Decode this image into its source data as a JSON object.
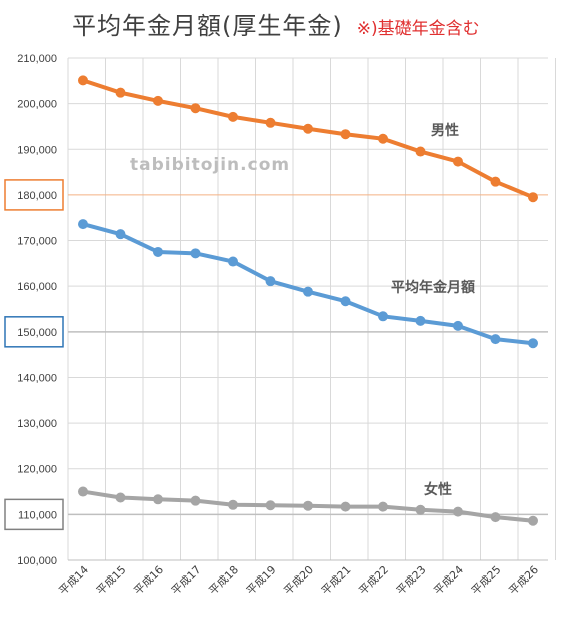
{
  "title": "平均年金月額(厚生年金)",
  "note": "※)基礎年金含む",
  "watermark": "tabibitojin.com",
  "colors": {
    "male": "#ed7d31",
    "avg": "#5b9bd5",
    "female": "#a5a5a5",
    "male_box": "#ed7d31",
    "avg_box": "#2e75b6",
    "female_box": "#808080",
    "grid": "#d9d9d9"
  },
  "chart_data": {
    "type": "line",
    "title": "平均年金月額(厚生年金)",
    "categories": [
      "平成14",
      "平成15",
      "平成16",
      "平成17",
      "平成18",
      "平成19",
      "平成20",
      "平成21",
      "平成22",
      "平成23",
      "平成24",
      "平成25",
      "平成26"
    ],
    "ylim": [
      100000,
      210000
    ],
    "yticks": [
      "100,000",
      "110,000",
      "120,000",
      "130,000",
      "140,000",
      "150,000",
      "160,000",
      "170,000",
      "180,000",
      "190,000",
      "200,000",
      "210,000"
    ],
    "grid": true,
    "series": [
      {
        "name": "男性",
        "key": "male",
        "values": [
          205100,
          202400,
          200600,
          199000,
          197100,
          195800,
          194500,
          193300,
          192300,
          189500,
          187300,
          182900,
          179500
        ]
      },
      {
        "name": "平均年金月額",
        "key": "avg",
        "values": [
          173600,
          171400,
          167500,
          167200,
          165400,
          161100,
          158800,
          156700,
          153400,
          152400,
          151300,
          148400,
          147500
        ]
      },
      {
        "name": "女性",
        "key": "female",
        "values": [
          115000,
          113700,
          113300,
          113000,
          112100,
          112000,
          111900,
          111700,
          111700,
          111000,
          110600,
          109400,
          108600
        ]
      }
    ],
    "highlighted_ticks": [
      {
        "label": "180,000",
        "key": "male_box"
      },
      {
        "label": "150,000",
        "key": "avg_box"
      },
      {
        "label": "110,000",
        "key": "female_box"
      }
    ]
  }
}
